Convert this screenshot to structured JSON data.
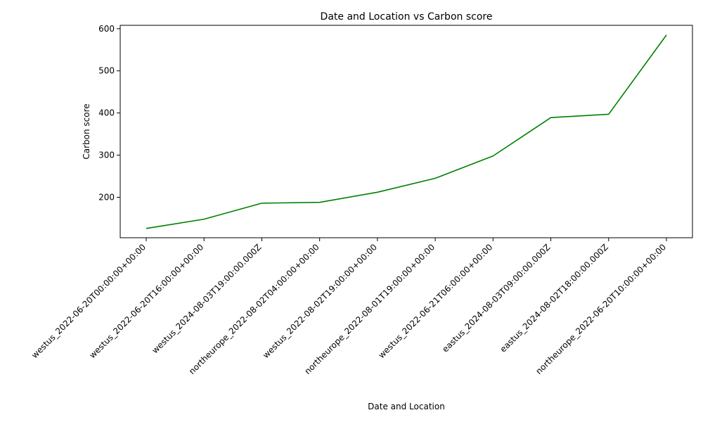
{
  "chart_data": {
    "type": "line",
    "title": "Date and Location vs Carbon score",
    "xlabel": "Date and Location",
    "ylabel": "Carbon score",
    "categories": [
      "westus_2022-06-20T00:00:00+00:00",
      "westus_2022-06-20T16:00:00+00:00",
      "westus_2024-08-03T19:00:00.000Z",
      "northeurope_2022-08-02T04:00:00+00:00",
      "westus_2022-08-02T19:00:00+00:00",
      "northeurope_2022-08-01T19:00:00+00:00",
      "westus_2022-06-21T06:00:00+00:00",
      "eastus_2024-08-03T09:00:00.000Z",
      "eastus_2024-08-02T18:00:00.000Z",
      "northeurope_2022-06-20T10:00:00+00:00"
    ],
    "values": [
      126,
      148,
      186,
      188,
      212,
      245,
      298,
      389,
      397,
      585
    ],
    "ylim": [
      104,
      608
    ],
    "yticks": [
      200,
      300,
      400,
      500,
      600
    ],
    "line_color": "#008000",
    "grid": false,
    "legend": "none"
  }
}
